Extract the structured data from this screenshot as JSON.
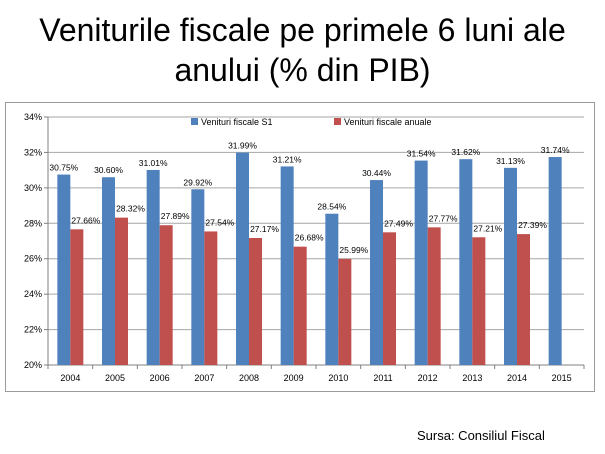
{
  "page": {
    "title_line1": "Veniturile fiscale pe primele 6 luni ale",
    "title_line2": "anului (% din PIB)",
    "source": "Sursa: Consiliul Fiscal"
  },
  "chart_data": {
    "type": "bar",
    "title": "",
    "xlabel": "",
    "ylabel": "",
    "categories": [
      "2004",
      "2005",
      "2006",
      "2007",
      "2008",
      "2009",
      "2010",
      "2011",
      "2012",
      "2013",
      "2014",
      "2015"
    ],
    "series": [
      {
        "name": "Venituri fiscale S1",
        "color": "#4f81bd",
        "values": [
          30.75,
          30.6,
          31.01,
          29.92,
          31.99,
          31.21,
          28.54,
          30.44,
          31.54,
          31.62,
          31.13,
          31.74
        ],
        "labels": [
          "30.75%",
          "30.60%",
          "31.01%",
          "29.92%",
          "31.99%",
          "31.21%",
          "28.54%",
          "30.44%",
          "31.54%",
          "31.62%",
          "31.13%",
          "31.74%"
        ]
      },
      {
        "name": "Venituri fiscale anuale",
        "color": "#c0504d",
        "values": [
          27.66,
          28.32,
          27.89,
          27.54,
          27.17,
          26.68,
          25.99,
          27.49,
          27.77,
          27.21,
          27.39,
          null
        ],
        "labels": [
          "27.66%",
          "28.32%",
          "27.89%",
          "27.54%",
          "27.17%",
          "26.68%",
          "25.99%",
          "27.49%",
          "27.77%",
          "27.21%",
          "27.39%",
          ""
        ]
      }
    ],
    "ylim": [
      20,
      34
    ],
    "yticks": [
      20,
      22,
      24,
      26,
      28,
      30,
      32,
      34
    ],
    "ytick_labels": [
      "20%",
      "22%",
      "24%",
      "26%",
      "28%",
      "30%",
      "32%",
      "34%"
    ],
    "grid": true,
    "legend_position": "top"
  }
}
